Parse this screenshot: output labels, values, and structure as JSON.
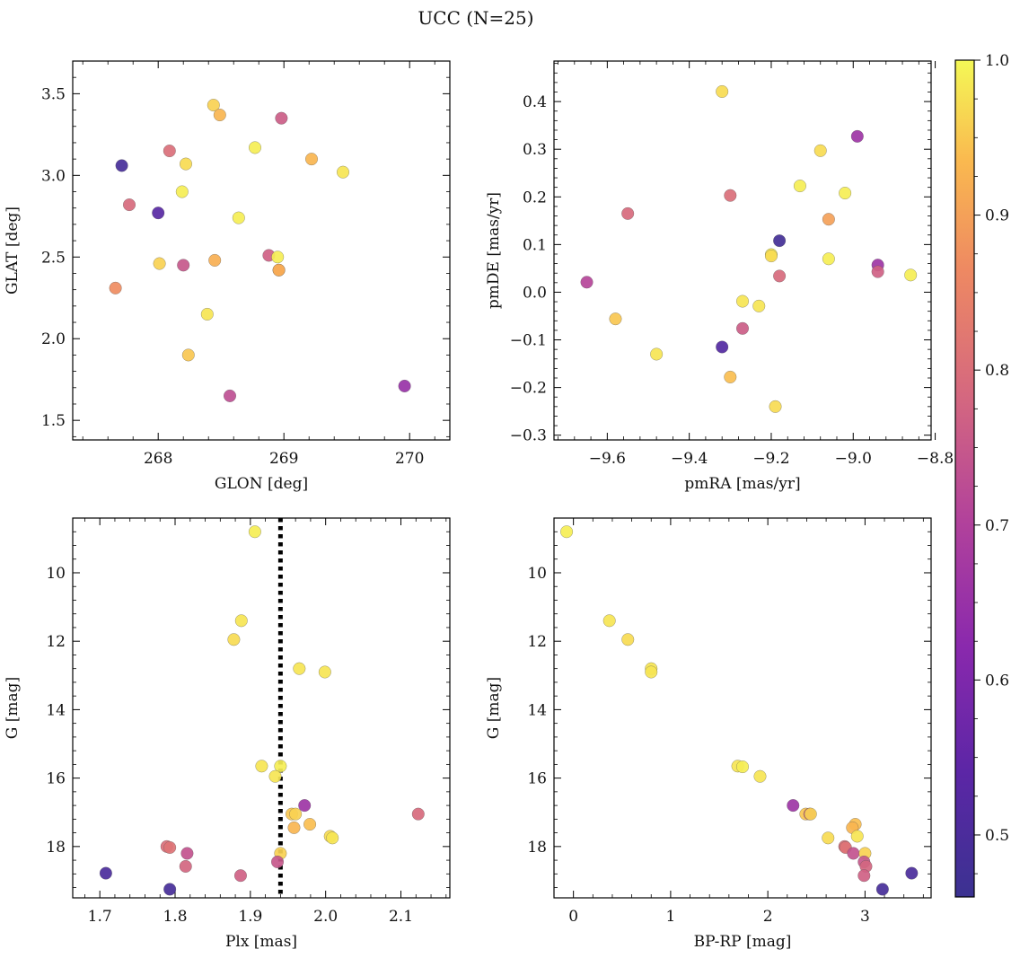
{
  "title": "UCC (N=25)",
  "colorbar": {
    "min": 0.46,
    "max": 1.0,
    "ticks": [
      0.5,
      0.6,
      0.7,
      0.8,
      0.9,
      1.0
    ],
    "tick_labels": [
      "0.5",
      "0.6",
      "0.7",
      "0.8",
      "0.9",
      "1.0"
    ],
    "colormap": "plasma (truncated 0.1–0.95)"
  },
  "chart_data": [
    {
      "type": "scatter",
      "id": "glon-glat",
      "xlabel": "GLON [deg]",
      "ylabel": "GLAT [deg]",
      "xlim": [
        267.32,
        270.32
      ],
      "ylim": [
        1.38,
        3.7
      ],
      "xticks": [
        268,
        269,
        270
      ],
      "xtick_labels": [
        "268",
        "269",
        "270"
      ],
      "yticks": [
        1.5,
        2.0,
        2.5,
        3.0,
        3.5
      ],
      "ytick_labels": [
        "1.5",
        "2.0",
        "2.5",
        "3.0",
        "3.5"
      ],
      "y_inverted": false,
      "grid": false,
      "points": [
        {
          "x": 267.71,
          "y": 3.06,
          "c": 0.49
        },
        {
          "x": 267.77,
          "y": 2.82,
          "c": 0.79
        },
        {
          "x": 268.0,
          "y": 2.77,
          "c": 0.53
        },
        {
          "x": 268.09,
          "y": 3.15,
          "c": 0.8
        },
        {
          "x": 268.22,
          "y": 3.07,
          "c": 0.97
        },
        {
          "x": 268.19,
          "y": 2.9,
          "c": 0.99
        },
        {
          "x": 267.66,
          "y": 2.31,
          "c": 0.87
        },
        {
          "x": 268.01,
          "y": 2.46,
          "c": 0.96
        },
        {
          "x": 268.2,
          "y": 2.45,
          "c": 0.75
        },
        {
          "x": 268.45,
          "y": 2.48,
          "c": 0.92
        },
        {
          "x": 268.44,
          "y": 3.43,
          "c": 0.96
        },
        {
          "x": 268.49,
          "y": 3.37,
          "c": 0.93
        },
        {
          "x": 268.77,
          "y": 3.17,
          "c": 0.99
        },
        {
          "x": 268.98,
          "y": 3.35,
          "c": 0.76
        },
        {
          "x": 269.22,
          "y": 3.1,
          "c": 0.93
        },
        {
          "x": 269.47,
          "y": 3.02,
          "c": 0.98
        },
        {
          "x": 268.64,
          "y": 2.74,
          "c": 0.99
        },
        {
          "x": 268.88,
          "y": 2.51,
          "c": 0.77
        },
        {
          "x": 268.95,
          "y": 2.5,
          "c": 0.99
        },
        {
          "x": 268.96,
          "y": 2.42,
          "c": 0.95
        },
        {
          "x": 268.39,
          "y": 2.15,
          "c": 0.98
        },
        {
          "x": 268.24,
          "y": 1.9,
          "c": 0.95
        },
        {
          "x": 268.57,
          "y": 1.65,
          "c": 0.73
        },
        {
          "x": 269.96,
          "y": 1.71,
          "c": 0.65
        },
        {
          "x": 268.96,
          "y": 2.42,
          "c": 0.91
        }
      ]
    },
    {
      "type": "scatter",
      "id": "pmra-pmde",
      "xlabel": "pmRA [mas/yr]",
      "ylabel": "pmDE [mas/yr]",
      "xlim": [
        -9.73,
        -8.81
      ],
      "ylim": [
        -0.31,
        0.485
      ],
      "xticks": [
        -9.6,
        -9.4,
        -9.2,
        -9.0,
        -8.8
      ],
      "xtick_labels": [
        "−9.6",
        "−9.4",
        "−9.2",
        "−9.0",
        "−8.8"
      ],
      "yticks": [
        -0.3,
        -0.2,
        -0.1,
        0.0,
        0.1,
        0.2,
        0.3,
        0.4
      ],
      "ytick_labels": [
        "−0.3",
        "−0.2",
        "−0.1",
        "0.0",
        "0.1",
        "0.2",
        "0.3",
        "0.4"
      ],
      "y_inverted": false,
      "grid": false,
      "points": [
        {
          "x": -9.32,
          "y": 0.421,
          "c": 0.97
        },
        {
          "x": -9.3,
          "y": 0.203,
          "c": 0.8
        },
        {
          "x": -9.55,
          "y": 0.165,
          "c": 0.79
        },
        {
          "x": -9.08,
          "y": 0.297,
          "c": 0.97
        },
        {
          "x": -8.99,
          "y": 0.327,
          "c": 0.66
        },
        {
          "x": -9.13,
          "y": 0.223,
          "c": 0.99
        },
        {
          "x": -9.02,
          "y": 0.208,
          "c": 0.99
        },
        {
          "x": -9.06,
          "y": 0.153,
          "c": 0.9
        },
        {
          "x": -9.18,
          "y": 0.108,
          "c": 0.48
        },
        {
          "x": -9.2,
          "y": 0.079,
          "c": 0.99
        },
        {
          "x": -9.2,
          "y": 0.076,
          "c": 0.97
        },
        {
          "x": -9.06,
          "y": 0.07,
          "c": 0.99
        },
        {
          "x": -8.94,
          "y": 0.057,
          "c": 0.66
        },
        {
          "x": -8.94,
          "y": 0.043,
          "c": 0.77
        },
        {
          "x": -9.18,
          "y": 0.034,
          "c": 0.79
        },
        {
          "x": -8.86,
          "y": 0.036,
          "c": 0.99
        },
        {
          "x": -9.65,
          "y": 0.021,
          "c": 0.71
        },
        {
          "x": -9.27,
          "y": -0.019,
          "c": 0.98
        },
        {
          "x": -9.23,
          "y": -0.029,
          "c": 0.98
        },
        {
          "x": -9.58,
          "y": -0.056,
          "c": 0.95
        },
        {
          "x": -9.27,
          "y": -0.076,
          "c": 0.76
        },
        {
          "x": -9.32,
          "y": -0.115,
          "c": 0.52
        },
        {
          "x": -9.48,
          "y": -0.13,
          "c": 0.98
        },
        {
          "x": -9.3,
          "y": -0.178,
          "c": 0.94
        },
        {
          "x": -9.19,
          "y": -0.24,
          "c": 0.97
        }
      ]
    },
    {
      "type": "scatter",
      "id": "plx-g",
      "xlabel": "Plx [mas]",
      "ylabel": "G [mag]",
      "xlim": [
        1.664,
        2.165
      ],
      "ylim": [
        8.4,
        19.5
      ],
      "xticks": [
        1.7,
        1.8,
        1.9,
        2.0,
        2.1
      ],
      "xtick_labels": [
        "1.7",
        "1.8",
        "1.9",
        "2.0",
        "2.1"
      ],
      "yticks": [
        10,
        12,
        14,
        16,
        18
      ],
      "ytick_labels": [
        "10",
        "12",
        "14",
        "16",
        "18"
      ],
      "y_inverted": true,
      "grid": false,
      "vline": {
        "x": 1.94,
        "style": "dotted"
      },
      "points": [
        {
          "x": 1.906,
          "y": 8.8,
          "c": 0.99
        },
        {
          "x": 1.888,
          "y": 11.4,
          "c": 0.98
        },
        {
          "x": 1.878,
          "y": 11.95,
          "c": 0.97
        },
        {
          "x": 1.965,
          "y": 12.8,
          "c": 0.98
        },
        {
          "x": 1.999,
          "y": 12.9,
          "c": 0.98
        },
        {
          "x": 1.915,
          "y": 15.65,
          "c": 0.98
        },
        {
          "x": 1.94,
          "y": 15.65,
          "c": 0.99
        },
        {
          "x": 1.933,
          "y": 15.95,
          "c": 0.98
        },
        {
          "x": 1.972,
          "y": 16.8,
          "c": 0.66
        },
        {
          "x": 1.955,
          "y": 17.05,
          "c": 0.95
        },
        {
          "x": 1.96,
          "y": 17.05,
          "c": 0.96
        },
        {
          "x": 2.123,
          "y": 17.05,
          "c": 0.79
        },
        {
          "x": 1.979,
          "y": 17.35,
          "c": 0.94
        },
        {
          "x": 1.958,
          "y": 17.45,
          "c": 0.93
        },
        {
          "x": 2.006,
          "y": 17.7,
          "c": 0.97
        },
        {
          "x": 2.009,
          "y": 17.75,
          "c": 0.98
        },
        {
          "x": 1.789,
          "y": 18.0,
          "c": 0.8
        },
        {
          "x": 1.793,
          "y": 18.03,
          "c": 0.81
        },
        {
          "x": 1.816,
          "y": 18.2,
          "c": 0.74
        },
        {
          "x": 1.94,
          "y": 18.2,
          "c": 0.96
        },
        {
          "x": 1.936,
          "y": 18.45,
          "c": 0.75
        },
        {
          "x": 1.814,
          "y": 18.58,
          "c": 0.78
        },
        {
          "x": 1.708,
          "y": 18.78,
          "c": 0.5
        },
        {
          "x": 1.887,
          "y": 18.85,
          "c": 0.77
        },
        {
          "x": 1.793,
          "y": 19.25,
          "c": 0.49
        }
      ]
    },
    {
      "type": "scatter",
      "id": "bprp-g",
      "xlabel": "BP-RP [mag]",
      "ylabel": "G [mag]",
      "xlim": [
        -0.2,
        3.68
      ],
      "ylim": [
        8.4,
        19.5
      ],
      "xticks": [
        0,
        1,
        2,
        3
      ],
      "xtick_labels": [
        "0",
        "1",
        "2",
        "3"
      ],
      "yticks": [
        10,
        12,
        14,
        16,
        18
      ],
      "ytick_labels": [
        "10",
        "12",
        "14",
        "16",
        "18"
      ],
      "y_inverted": true,
      "grid": false,
      "points": [
        {
          "x": -0.07,
          "y": 8.8,
          "c": 0.99
        },
        {
          "x": 0.37,
          "y": 11.4,
          "c": 0.98
        },
        {
          "x": 0.56,
          "y": 11.95,
          "c": 0.97
        },
        {
          "x": 0.8,
          "y": 12.8,
          "c": 0.98
        },
        {
          "x": 0.8,
          "y": 12.9,
          "c": 0.98
        },
        {
          "x": 1.69,
          "y": 15.65,
          "c": 0.98
        },
        {
          "x": 1.74,
          "y": 15.67,
          "c": 0.99
        },
        {
          "x": 1.92,
          "y": 15.95,
          "c": 0.98
        },
        {
          "x": 2.26,
          "y": 16.8,
          "c": 0.66
        },
        {
          "x": 2.39,
          "y": 17.05,
          "c": 0.95
        },
        {
          "x": 2.43,
          "y": 17.05,
          "c": 0.79
        },
        {
          "x": 2.44,
          "y": 17.05,
          "c": 0.96
        },
        {
          "x": 2.62,
          "y": 17.75,
          "c": 0.97
        },
        {
          "x": 2.9,
          "y": 17.35,
          "c": 0.94
        },
        {
          "x": 2.87,
          "y": 17.45,
          "c": 0.93
        },
        {
          "x": 2.92,
          "y": 17.7,
          "c": 0.98
        },
        {
          "x": 2.79,
          "y": 18.0,
          "c": 0.8
        },
        {
          "x": 2.8,
          "y": 18.03,
          "c": 0.81
        },
        {
          "x": 2.88,
          "y": 18.2,
          "c": 0.74
        },
        {
          "x": 3.0,
          "y": 18.2,
          "c": 0.96
        },
        {
          "x": 2.99,
          "y": 18.45,
          "c": 0.75
        },
        {
          "x": 3.01,
          "y": 18.58,
          "c": 0.78
        },
        {
          "x": 3.48,
          "y": 18.78,
          "c": 0.5
        },
        {
          "x": 2.99,
          "y": 18.85,
          "c": 0.77
        },
        {
          "x": 3.18,
          "y": 19.25,
          "c": 0.49
        }
      ]
    }
  ]
}
